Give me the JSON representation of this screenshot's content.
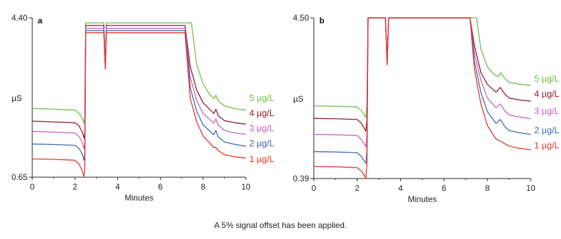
{
  "footnote": "A 5% signal offset has been applied.",
  "colors": {
    "1 µg/L": "#e8302a",
    "2 µg/L": "#3e66b0",
    "3 µg/L": "#c760b8",
    "4 µg/L": "#8e1a24",
    "5 µg/L": "#6cbf45"
  },
  "chart_data": [
    {
      "type": "line",
      "panel": "a",
      "xlabel": "Minutes",
      "ylabel": "µS",
      "xlim": [
        0,
        10
      ],
      "ylim": [
        0.65,
        4.4
      ],
      "x_ticks": [
        0,
        2,
        4,
        6,
        8,
        10
      ],
      "y_ticks": [
        "0.65",
        "4.40"
      ],
      "series": [
        {
          "name": "1 µg/L",
          "color": "#e8302a",
          "x": [
            0,
            1,
            2,
            2.2,
            2.35,
            2.42,
            2.46,
            2.5,
            3.35,
            3.42,
            3.47,
            3.55,
            7.15,
            7.4,
            7.7,
            8,
            8.5,
            8.6,
            8.7,
            9,
            9.5,
            10
          ],
          "y": [
            1.08,
            1.07,
            1.05,
            0.95,
            0.78,
            0.66,
            0.85,
            4.05,
            4.05,
            3.2,
            4.05,
            4.05,
            4.05,
            2.5,
            1.95,
            1.62,
            1.35,
            1.35,
            1.28,
            1.18,
            1.13,
            1.1
          ]
        },
        {
          "name": "2 µg/L",
          "color": "#3e66b0",
          "x": [
            0,
            1,
            2,
            2.2,
            2.35,
            2.42,
            2.46,
            2.5,
            3.35,
            3.42,
            3.47,
            3.55,
            7.15,
            7.4,
            7.7,
            8,
            8.5,
            8.6,
            8.7,
            9,
            9.5,
            10
          ],
          "y": [
            1.43,
            1.42,
            1.4,
            1.32,
            1.18,
            1.05,
            1.2,
            4.1,
            4.1,
            3.2,
            4.1,
            4.1,
            4.1,
            2.75,
            2.2,
            1.88,
            1.65,
            1.75,
            1.6,
            1.48,
            1.42,
            1.38
          ]
        },
        {
          "name": "3 µg/L",
          "color": "#c760b8",
          "x": [
            0,
            1,
            2,
            2.2,
            2.35,
            2.42,
            2.46,
            2.5,
            3.35,
            3.42,
            3.47,
            3.55,
            7.15,
            7.4,
            7.7,
            8,
            8.5,
            8.6,
            8.7,
            9,
            9.5,
            10
          ],
          "y": [
            1.73,
            1.71,
            1.69,
            1.6,
            1.45,
            1.32,
            1.45,
            4.15,
            4.15,
            3.25,
            4.15,
            4.15,
            4.15,
            3.0,
            2.45,
            2.15,
            1.92,
            2.02,
            1.88,
            1.75,
            1.69,
            1.66
          ]
        },
        {
          "name": "4 µg/L",
          "color": "#8e1a24",
          "x": [
            0,
            1,
            2,
            2.2,
            2.35,
            2.42,
            2.46,
            2.5,
            3.35,
            3.42,
            3.47,
            3.55,
            7.15,
            7.4,
            7.7,
            8,
            8.5,
            8.6,
            8.7,
            9,
            9.5,
            10
          ],
          "y": [
            1.97,
            1.95,
            1.93,
            1.85,
            1.7,
            1.57,
            1.7,
            4.22,
            4.22,
            3.2,
            4.22,
            4.22,
            4.22,
            3.25,
            2.7,
            2.4,
            2.15,
            2.25,
            2.1,
            1.98,
            1.93,
            1.9
          ]
        },
        {
          "name": "5 µg/L",
          "color": "#6cbf45",
          "x": [
            0,
            1,
            2,
            2.2,
            2.35,
            2.42,
            2.46,
            2.5,
            3.35,
            3.42,
            3.47,
            3.55,
            7.45,
            7.7,
            8,
            8.3,
            8.5,
            8.6,
            8.7,
            9,
            9.5,
            10
          ],
          "y": [
            2.27,
            2.25,
            2.23,
            2.15,
            2.02,
            1.92,
            2.05,
            4.28,
            4.28,
            3.3,
            4.28,
            4.28,
            4.28,
            3.3,
            2.85,
            2.6,
            2.5,
            2.58,
            2.45,
            2.33,
            2.26,
            2.23
          ]
        }
      ]
    },
    {
      "type": "line",
      "panel": "b",
      "xlabel": "Minutes",
      "ylabel": "µS",
      "xlim": [
        0,
        10
      ],
      "ylim": [
        0.39,
        4.5
      ],
      "x_ticks": [
        0,
        2,
        4,
        6,
        8,
        10
      ],
      "y_ticks": [
        "0.39",
        "4.50"
      ],
      "series": [
        {
          "name": "1 µg/L",
          "color": "#e8302a",
          "x": [
            0,
            1,
            2,
            2.2,
            2.35,
            2.4,
            2.45,
            2.5,
            3.3,
            3.38,
            3.45,
            3.5,
            7.2,
            7.4,
            7.7,
            8,
            8.4,
            8.6,
            8.8,
            9,
            9.5,
            10
          ],
          "y": [
            0.7,
            0.69,
            0.67,
            0.58,
            0.45,
            0.4,
            0.75,
            4.5,
            4.5,
            3.3,
            4.5,
            4.5,
            4.5,
            3.2,
            2.3,
            1.75,
            1.4,
            1.35,
            1.28,
            1.22,
            1.16,
            1.13
          ]
        },
        {
          "name": "2 µg/L",
          "color": "#3e66b0",
          "x": [
            0,
            1,
            2,
            2.2,
            2.35,
            2.4,
            2.45,
            2.5,
            3.3,
            3.38,
            3.45,
            3.5,
            7.2,
            7.4,
            7.7,
            8,
            8.4,
            8.6,
            8.8,
            9,
            9.5,
            10
          ],
          "y": [
            1.08,
            1.07,
            1.05,
            0.95,
            0.82,
            0.78,
            1.1,
            4.5,
            4.5,
            3.3,
            4.5,
            4.5,
            4.5,
            3.4,
            2.6,
            2.1,
            1.8,
            1.9,
            1.72,
            1.62,
            1.56,
            1.52
          ]
        },
        {
          "name": "3 µg/L",
          "color": "#c760b8",
          "x": [
            0,
            1,
            2,
            2.2,
            2.35,
            2.4,
            2.45,
            2.5,
            3.3,
            3.38,
            3.45,
            3.5,
            7.2,
            7.4,
            7.7,
            8,
            8.4,
            8.6,
            8.8,
            9,
            9.5,
            10
          ],
          "y": [
            1.52,
            1.51,
            1.49,
            1.38,
            1.25,
            1.2,
            1.5,
            4.5,
            4.5,
            3.4,
            4.5,
            4.5,
            4.5,
            3.6,
            2.9,
            2.45,
            2.2,
            2.3,
            2.12,
            2.02,
            1.96,
            1.92
          ]
        },
        {
          "name": "4 µg/L",
          "color": "#8e1a24",
          "x": [
            0,
            1,
            2,
            2.2,
            2.35,
            2.4,
            2.45,
            2.5,
            3.3,
            3.38,
            3.45,
            3.5,
            7.2,
            7.4,
            7.7,
            8,
            8.4,
            8.6,
            8.8,
            9,
            9.5,
            10
          ],
          "y": [
            1.93,
            1.92,
            1.9,
            1.8,
            1.65,
            1.6,
            1.9,
            4.5,
            4.5,
            3.4,
            4.5,
            4.5,
            4.5,
            3.8,
            3.1,
            2.8,
            2.6,
            2.72,
            2.55,
            2.45,
            2.4,
            2.37
          ]
        },
        {
          "name": "5 µg/L",
          "color": "#6cbf45",
          "x": [
            0,
            1,
            2,
            2.2,
            2.35,
            2.4,
            2.45,
            2.5,
            3.3,
            3.38,
            3.45,
            3.5,
            7.5,
            7.7,
            8,
            8.3,
            8.5,
            8.6,
            8.8,
            9,
            9.5,
            10
          ],
          "y": [
            2.25,
            2.24,
            2.22,
            2.12,
            2.0,
            1.95,
            2.25,
            4.5,
            4.5,
            3.5,
            4.5,
            4.5,
            4.5,
            3.7,
            3.25,
            3.05,
            3.0,
            3.1,
            2.95,
            2.85,
            2.8,
            2.77
          ]
        }
      ]
    }
  ]
}
